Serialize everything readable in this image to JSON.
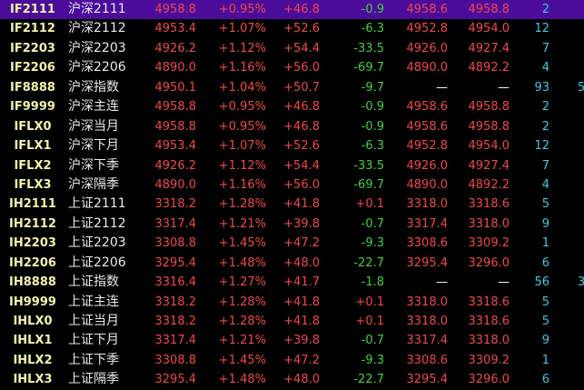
{
  "colors": {
    "up": "#f04848",
    "down": "#40d040",
    "neutral": "#ffffff",
    "count": "#40c8e0",
    "selected_row": "#4b0c9c"
  },
  "selected_index": 0,
  "rows": [
    {
      "code": "IF2111",
      "name": "沪深2111",
      "price": "4958.8",
      "pct": "+0.95%",
      "chg": "+46.8",
      "chg2": "-0.9",
      "bid": "4958.6",
      "ask": "4958.8",
      "cnt": "2",
      "ext": ""
    },
    {
      "code": "IF2112",
      "name": "沪深2112",
      "price": "4953.4",
      "pct": "+1.07%",
      "chg": "+52.6",
      "chg2": "-6.3",
      "bid": "4952.8",
      "ask": "4954.0",
      "cnt": "12",
      "ext": ""
    },
    {
      "code": "IF2203",
      "name": "沪深2203",
      "price": "4926.2",
      "pct": "+1.12%",
      "chg": "+54.4",
      "chg2": "-33.5",
      "bid": "4926.0",
      "ask": "4927.4",
      "cnt": "7",
      "ext": ""
    },
    {
      "code": "IF2206",
      "name": "沪深2206",
      "price": "4890.0",
      "pct": "+1.16%",
      "chg": "+56.0",
      "chg2": "-69.7",
      "bid": "4890.0",
      "ask": "4892.2",
      "cnt": "4",
      "ext": ""
    },
    {
      "code": "IF8888",
      "name": "沪深指数",
      "price": "4950.1",
      "pct": "+1.04%",
      "chg": "+50.7",
      "chg2": "-9.7",
      "bid": "—",
      "ask": "—",
      "cnt": "93",
      "ext": "5"
    },
    {
      "code": "IF9999",
      "name": "沪深主连",
      "price": "4958.8",
      "pct": "+0.95%",
      "chg": "+46.8",
      "chg2": "-0.9",
      "bid": "4958.6",
      "ask": "4958.8",
      "cnt": "2",
      "ext": ""
    },
    {
      "code": "IFLX0",
      "name": "沪深当月",
      "price": "4958.8",
      "pct": "+0.95%",
      "chg": "+46.8",
      "chg2": "-0.9",
      "bid": "4958.6",
      "ask": "4958.8",
      "cnt": "2",
      "ext": ""
    },
    {
      "code": "IFLX1",
      "name": "沪深下月",
      "price": "4953.4",
      "pct": "+1.07%",
      "chg": "+52.6",
      "chg2": "-6.3",
      "bid": "4952.8",
      "ask": "4954.0",
      "cnt": "12",
      "ext": ""
    },
    {
      "code": "IFLX2",
      "name": "沪深下季",
      "price": "4926.2",
      "pct": "+1.12%",
      "chg": "+54.4",
      "chg2": "-33.5",
      "bid": "4926.0",
      "ask": "4927.4",
      "cnt": "7",
      "ext": ""
    },
    {
      "code": "IFLX3",
      "name": "沪深隔季",
      "price": "4890.0",
      "pct": "+1.16%",
      "chg": "+56.0",
      "chg2": "-69.7",
      "bid": "4890.0",
      "ask": "4892.2",
      "cnt": "4",
      "ext": ""
    },
    {
      "code": "IH2111",
      "name": "上证2111",
      "price": "3318.2",
      "pct": "+1.28%",
      "chg": "+41.8",
      "chg2": "+0.1",
      "bid": "3318.0",
      "ask": "3318.6",
      "cnt": "5",
      "ext": ""
    },
    {
      "code": "IH2112",
      "name": "上证2112",
      "price": "3317.4",
      "pct": "+1.21%",
      "chg": "+39.8",
      "chg2": "-0.7",
      "bid": "3317.4",
      "ask": "3318.0",
      "cnt": "9",
      "ext": ""
    },
    {
      "code": "IH2203",
      "name": "上证2203",
      "price": "3308.8",
      "pct": "+1.45%",
      "chg": "+47.2",
      "chg2": "-9.3",
      "bid": "3308.6",
      "ask": "3309.2",
      "cnt": "1",
      "ext": ""
    },
    {
      "code": "IH2206",
      "name": "上证2206",
      "price": "3295.4",
      "pct": "+1.48%",
      "chg": "+48.0",
      "chg2": "-22.7",
      "bid": "3295.4",
      "ask": "3296.0",
      "cnt": "6",
      "ext": ""
    },
    {
      "code": "IH8888",
      "name": "上证指数",
      "price": "3316.4",
      "pct": "+1.27%",
      "chg": "+41.7",
      "chg2": "-1.8",
      "bid": "—",
      "ask": "—",
      "cnt": "56",
      "ext": "3"
    },
    {
      "code": "IH9999",
      "name": "上证主连",
      "price": "3318.2",
      "pct": "+1.28%",
      "chg": "+41.8",
      "chg2": "+0.1",
      "bid": "3318.0",
      "ask": "3318.6",
      "cnt": "5",
      "ext": ""
    },
    {
      "code": "IHLX0",
      "name": "上证当月",
      "price": "3318.2",
      "pct": "+1.28%",
      "chg": "+41.8",
      "chg2": "+0.1",
      "bid": "3318.0",
      "ask": "3318.6",
      "cnt": "5",
      "ext": ""
    },
    {
      "code": "IHLX1",
      "name": "上证下月",
      "price": "3317.4",
      "pct": "+1.21%",
      "chg": "+39.8",
      "chg2": "-0.7",
      "bid": "3317.4",
      "ask": "3318.0",
      "cnt": "9",
      "ext": ""
    },
    {
      "code": "IHLX2",
      "name": "上证下季",
      "price": "3308.8",
      "pct": "+1.45%",
      "chg": "+47.2",
      "chg2": "-9.3",
      "bid": "3308.6",
      "ask": "3309.2",
      "cnt": "1",
      "ext": ""
    },
    {
      "code": "IHLX3",
      "name": "上证隔季",
      "price": "3295.4",
      "pct": "+1.48%",
      "chg": "+48.0",
      "chg2": "-22.7",
      "bid": "3295.4",
      "ask": "3296.0",
      "cnt": "6",
      "ext": ""
    }
  ]
}
